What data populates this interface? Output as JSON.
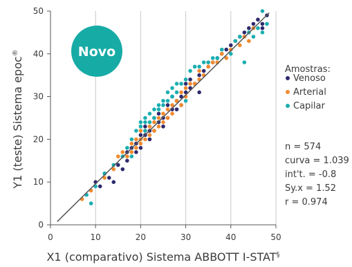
{
  "chart_data": {
    "type": "scatter",
    "xlabel": "X1 (comparativo) Sistema ABBOTT I-STAT",
    "xlabel_sup": "§",
    "ylabel": "Y1 (teste) Sistema epoc",
    "ylabel_sup": "®",
    "xlim": [
      0,
      50
    ],
    "ylim": [
      0,
      50
    ],
    "xticks": [
      "0",
      "10",
      "20",
      "30",
      "40",
      "50"
    ],
    "yticks": [
      "0",
      "10",
      "20",
      "30",
      "40",
      "50"
    ],
    "grid": "vertical",
    "badge": "Novo",
    "badge_color": "#17aba6",
    "legend": {
      "title": "Amostras:",
      "placement": "right",
      "entries": [
        {
          "label": "Venoso",
          "color": "#2e2a6e"
        },
        {
          "label": "Arterial",
          "color": "#f28a2e"
        },
        {
          "label": "Capilar",
          "color": "#1aaeb0"
        }
      ]
    },
    "stats": [
      "n = 574",
      "curva = 1.039",
      "int't. = -0.8",
      "Sy.x = 1.52",
      "r = 0.974"
    ],
    "fit_line": {
      "slope": 1.039,
      "intercept": -0.8,
      "x_from": 1.5,
      "x_to": 48.5,
      "color": "#555555"
    },
    "series": [
      {
        "name": "Venoso",
        "color": "#2e2a6e",
        "points": [
          [
            10,
            10
          ],
          [
            11,
            9
          ],
          [
            12,
            12
          ],
          [
            13,
            11
          ],
          [
            14,
            10
          ],
          [
            15,
            14
          ],
          [
            16,
            13
          ],
          [
            17,
            17
          ],
          [
            17,
            15
          ],
          [
            18,
            18
          ],
          [
            19,
            19
          ],
          [
            19,
            17
          ],
          [
            20,
            21
          ],
          [
            20,
            18
          ],
          [
            21,
            21
          ],
          [
            21,
            23
          ],
          [
            22,
            22
          ],
          [
            22,
            20
          ],
          [
            23,
            25
          ],
          [
            23,
            22
          ],
          [
            24,
            24
          ],
          [
            24,
            26
          ],
          [
            25,
            25
          ],
          [
            25,
            23
          ],
          [
            26,
            28
          ],
          [
            26,
            25
          ],
          [
            27,
            27
          ],
          [
            27,
            30
          ],
          [
            28,
            29
          ],
          [
            28,
            27
          ],
          [
            29,
            30
          ],
          [
            29,
            28
          ],
          [
            30,
            31
          ],
          [
            30,
            33
          ],
          [
            31,
            32
          ],
          [
            31,
            34
          ],
          [
            32,
            33
          ],
          [
            33,
            35
          ],
          [
            33,
            31
          ],
          [
            34,
            36
          ],
          [
            35,
            37
          ],
          [
            36,
            38
          ],
          [
            37,
            39
          ],
          [
            38,
            40
          ],
          [
            39,
            41
          ],
          [
            40,
            42
          ],
          [
            41,
            43
          ],
          [
            42,
            44
          ],
          [
            43,
            45
          ],
          [
            44,
            46
          ],
          [
            45,
            47
          ],
          [
            46,
            48
          ],
          [
            47,
            47
          ],
          [
            48,
            49
          ],
          [
            47,
            46
          ]
        ]
      },
      {
        "name": "Arterial",
        "color": "#f28a2e",
        "points": [
          [
            7,
            6
          ],
          [
            9,
            8
          ],
          [
            12,
            11
          ],
          [
            14,
            13
          ],
          [
            15,
            16
          ],
          [
            16,
            17
          ],
          [
            17,
            16
          ],
          [
            18,
            19
          ],
          [
            18,
            17
          ],
          [
            19,
            20
          ],
          [
            19,
            18
          ],
          [
            20,
            20
          ],
          [
            20,
            22
          ],
          [
            21,
            20
          ],
          [
            21,
            22
          ],
          [
            22,
            23
          ],
          [
            22,
            21
          ],
          [
            23,
            24
          ],
          [
            23,
            22
          ],
          [
            24,
            23
          ],
          [
            24,
            25
          ],
          [
            25,
            26
          ],
          [
            25,
            24
          ],
          [
            26,
            27
          ],
          [
            26,
            25
          ],
          [
            27,
            28
          ],
          [
            27,
            26
          ],
          [
            28,
            29
          ],
          [
            29,
            28
          ],
          [
            29,
            31
          ],
          [
            30,
            32
          ],
          [
            30,
            30
          ],
          [
            31,
            33
          ],
          [
            32,
            33
          ],
          [
            33,
            34
          ],
          [
            34,
            35
          ],
          [
            35,
            37
          ],
          [
            36,
            38
          ],
          [
            37,
            38
          ],
          [
            38,
            40
          ],
          [
            39,
            39
          ],
          [
            40,
            41
          ],
          [
            41,
            43
          ],
          [
            42,
            42
          ],
          [
            43,
            44
          ],
          [
            44,
            43
          ],
          [
            45,
            46
          ],
          [
            33,
            36
          ],
          [
            35,
            38
          ],
          [
            20,
            19
          ]
        ]
      },
      {
        "name": "Capilar",
        "color": "#1aaeb0",
        "points": [
          [
            8,
            7
          ],
          [
            9,
            5
          ],
          [
            10,
            9
          ],
          [
            12,
            12
          ],
          [
            14,
            14
          ],
          [
            16,
            16
          ],
          [
            17,
            18
          ],
          [
            18,
            16
          ],
          [
            18,
            20
          ],
          [
            19,
            22
          ],
          [
            20,
            23
          ],
          [
            20,
            24
          ],
          [
            21,
            24
          ],
          [
            21,
            25
          ],
          [
            22,
            24
          ],
          [
            22,
            26
          ],
          [
            23,
            25
          ],
          [
            23,
            27
          ],
          [
            24,
            27
          ],
          [
            24,
            28
          ],
          [
            25,
            28
          ],
          [
            25,
            29
          ],
          [
            26,
            29
          ],
          [
            27,
            30
          ],
          [
            27,
            32
          ],
          [
            28,
            31
          ],
          [
            28,
            33
          ],
          [
            29,
            33
          ],
          [
            30,
            34
          ],
          [
            31,
            36
          ],
          [
            32,
            37
          ],
          [
            33,
            37
          ],
          [
            34,
            38
          ],
          [
            35,
            38
          ],
          [
            36,
            39
          ],
          [
            37,
            39
          ],
          [
            38,
            41
          ],
          [
            40,
            40
          ],
          [
            41,
            43
          ],
          [
            42,
            44
          ],
          [
            43,
            38
          ],
          [
            44,
            45
          ],
          [
            45,
            44
          ],
          [
            46,
            46
          ],
          [
            47,
            50
          ],
          [
            47,
            45
          ],
          [
            48,
            47
          ],
          [
            26,
            31
          ],
          [
            30,
            29
          ],
          [
            21,
            22
          ]
        ]
      }
    ]
  }
}
